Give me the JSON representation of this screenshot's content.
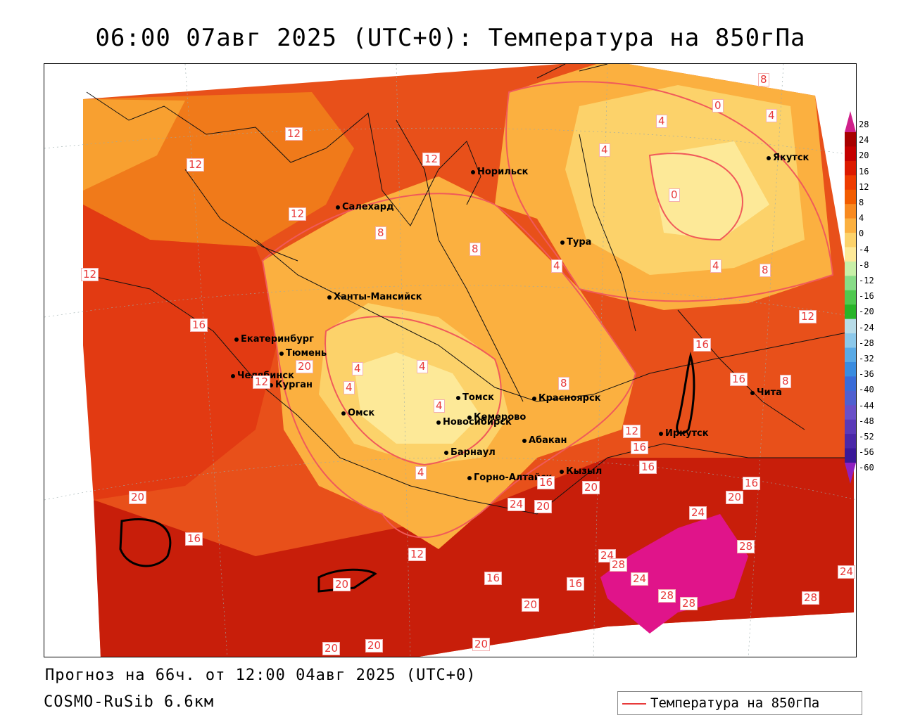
{
  "title": "06:00 07авг 2025 (UTC+0): Температура на 850гПа",
  "footer": {
    "forecast": "Прогноз на 66ч. от 12:00 04авг 2025 (UTC+0)",
    "model": "COSMO-RuSib 6.6км"
  },
  "legend": {
    "line_label": "Температура на 850гПа",
    "line_color": "#e83a3a",
    "scale_labels": [
      "28",
      "24",
      "20",
      "16",
      "12",
      "8",
      "4",
      "0",
      "-4",
      "-8",
      "-12",
      "-16",
      "-20",
      "-24",
      "-28",
      "-32",
      "-36",
      "-40",
      "-44",
      "-48",
      "-52",
      "-56",
      "-60"
    ],
    "scale_colors": [
      "#a80000",
      "#c40000",
      "#dc1a00",
      "#ee3c00",
      "#f25c00",
      "#f88a20",
      "#fbb040",
      "#fcd26a",
      "#fde998",
      "#c8f0a8",
      "#88dc88",
      "#50c850",
      "#28b428",
      "#b8dce8",
      "#8cc8ea",
      "#5aaae6",
      "#3a8ce0",
      "#3a6cd8",
      "#5060d0",
      "#6a50c8",
      "#5a3ab8",
      "#4a28a8",
      "#3a1898"
    ],
    "top_color": "#d0208a",
    "bottom_color": "#9020c0"
  },
  "cities": [
    {
      "name": "Норильск",
      "label": "Норильск"
    },
    {
      "name": "Якутск",
      "label": "Якутск"
    },
    {
      "name": "Салехард",
      "label": "Салехард"
    },
    {
      "name": "Тура",
      "label": "Тура"
    },
    {
      "name": "Ханты-Мансийск",
      "label": "Ханты-Мансийск"
    },
    {
      "name": "Екатеринбург",
      "label": "Екатеринбург"
    },
    {
      "name": "Тюмень",
      "label": "Тюмень"
    },
    {
      "name": "Челябинск",
      "label": "Челябинск"
    },
    {
      "name": "Курган",
      "label": "Курган"
    },
    {
      "name": "Омск",
      "label": "Омск"
    },
    {
      "name": "Новосибирск",
      "label": "Новосибирск"
    },
    {
      "name": "Томск",
      "label": "Томск"
    },
    {
      "name": "Кемерово",
      "label": "Кемерово"
    },
    {
      "name": "Красноярск",
      "label": "Красноярск"
    },
    {
      "name": "Барнаул",
      "label": "Барнаул"
    },
    {
      "name": "Абакан",
      "label": "Абакан"
    },
    {
      "name": "Иркутск",
      "label": "Иркутск"
    },
    {
      "name": "Чита",
      "label": "Чита"
    },
    {
      "name": "Горно-Алтайск",
      "label": "Горно-Алтайск"
    },
    {
      "name": "Кызыл",
      "label": "Кызыл"
    }
  ],
  "isolines": [
    "8",
    "0",
    "4",
    "4",
    "12",
    "4",
    "12",
    "0",
    "12",
    "12",
    "8",
    "8",
    "4",
    "4",
    "8",
    "12",
    "12",
    "16",
    "16",
    "16",
    "8",
    "4",
    "4",
    "4",
    "4",
    "12",
    "8",
    "4",
    "12",
    "16",
    "16",
    "20",
    "20",
    "16",
    "16",
    "20",
    "20",
    "20",
    "24",
    "16",
    "28",
    "24",
    "28",
    "24",
    "28",
    "28",
    "24",
    "28",
    "12",
    "16",
    "16",
    "20",
    "20",
    "20",
    "20",
    "24",
    "20"
  ]
}
